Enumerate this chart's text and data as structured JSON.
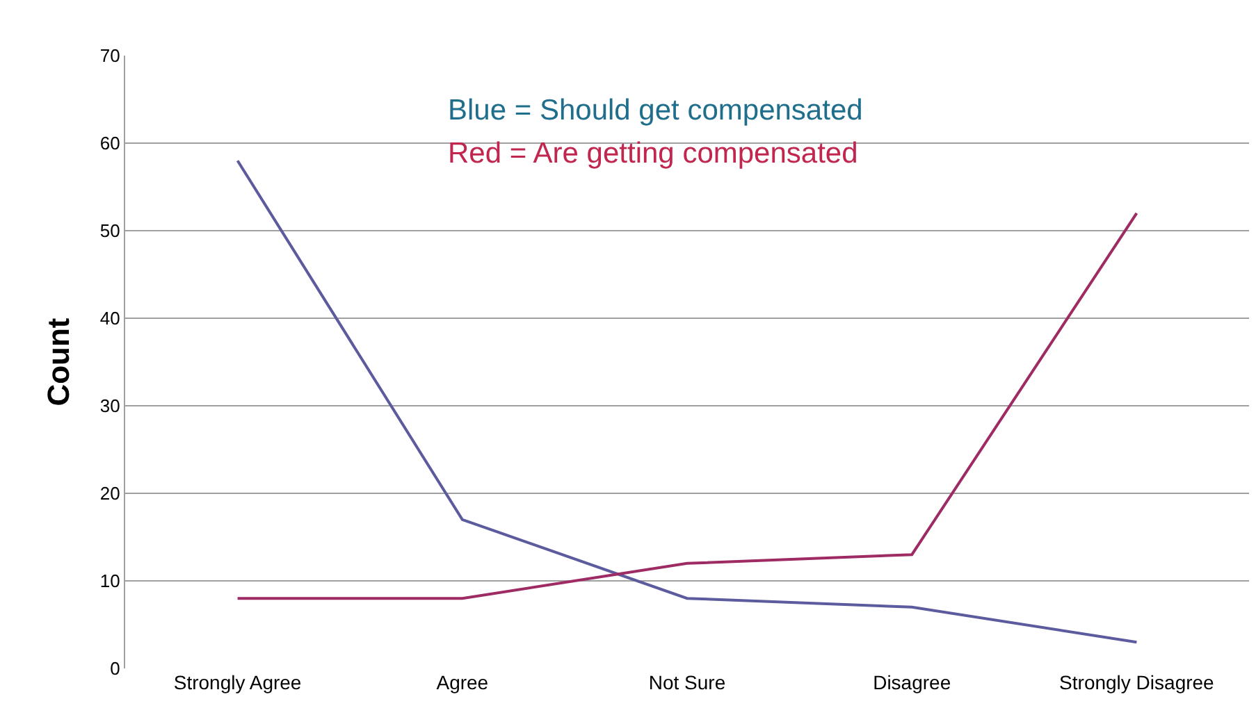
{
  "chart_data": {
    "type": "line",
    "ylabel": "Count",
    "categories": [
      "Strongly Agree",
      "Agree",
      "Not Sure",
      "Disagree",
      "Strongly Disagree"
    ],
    "series": [
      {
        "color": "#5b5b9e",
        "values": [
          58,
          17,
          8,
          7,
          3
        ]
      },
      {
        "color": "#9e2b63",
        "values": [
          8,
          8,
          12,
          13,
          52
        ]
      }
    ],
    "annotations": [
      "Blue = Should get compensated",
      "Red = Are getting compensated"
    ],
    "ylim": [
      0,
      70
    ],
    "yticks": [
      0,
      10,
      20,
      30,
      40,
      50,
      60,
      70
    ],
    "grid": "y",
    "marker": "none",
    "line_style": "solid"
  }
}
